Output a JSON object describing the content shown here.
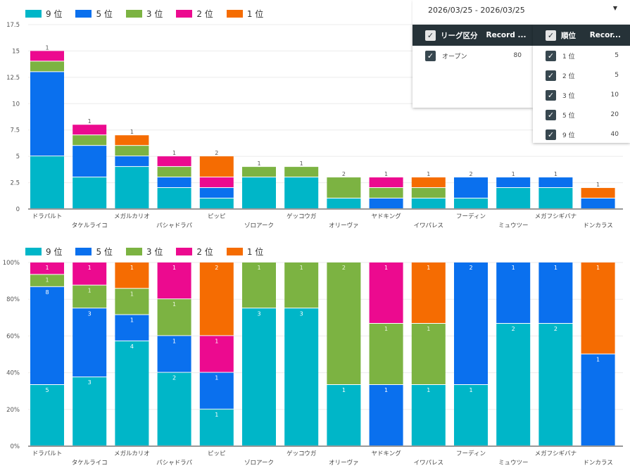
{
  "legend": [
    {
      "label": "9 位",
      "color": "#00b6c8"
    },
    {
      "label": "5 位",
      "color": "#0a70ee"
    },
    {
      "label": "3 位",
      "color": "#7cb342"
    },
    {
      "label": "2 位",
      "color": "#ec0a8f"
    },
    {
      "label": "1 位",
      "color": "#f56c02"
    }
  ],
  "filters": {
    "date_range": "2026/03/25 - 2026/03/25",
    "league": {
      "header_label": "リーグ区分",
      "header_metric": "Record ...",
      "rows": [
        {
          "label": "オープン",
          "value": "80"
        }
      ]
    },
    "rank": {
      "header_label": "順位",
      "header_metric": "Recor...",
      "rows": [
        {
          "label": "1 位",
          "value": "5"
        },
        {
          "label": "2 位",
          "value": "5"
        },
        {
          "label": "3 位",
          "value": "10"
        },
        {
          "label": "5 位",
          "value": "20"
        },
        {
          "label": "9 位",
          "value": "40"
        }
      ]
    }
  },
  "chart_data": [
    {
      "type": "bar",
      "stacked": true,
      "title": "",
      "categories": [
        "ドラパルト",
        "タケルライコ",
        "メガルカリオ",
        "パシャドラパ",
        "ピッピ",
        "ゾロアーク",
        "ゲッコウガ",
        "オリーヴァ",
        "ヤドキング",
        "イワパレス",
        "フーディン",
        "ミュウツー",
        "メガフシギバナ",
        "ドンカラス"
      ],
      "series": [
        {
          "name": "9 位",
          "values": [
            5,
            3,
            4,
            2,
            1,
            3,
            3,
            1,
            0,
            1,
            1,
            2,
            2,
            0
          ]
        },
        {
          "name": "5 位",
          "values": [
            8,
            3,
            1,
            1,
            1,
            0,
            0,
            0,
            1,
            0,
            2,
            1,
            1,
            1
          ]
        },
        {
          "name": "3 位",
          "values": [
            1,
            1,
            1,
            1,
            0,
            1,
            1,
            2,
            1,
            1,
            0,
            0,
            0,
            0
          ]
        },
        {
          "name": "2 位",
          "values": [
            1,
            1,
            0,
            1,
            1,
            0,
            0,
            0,
            1,
            0,
            0,
            0,
            0,
            0
          ]
        },
        {
          "name": "1 位",
          "values": [
            0,
            0,
            1,
            0,
            2,
            0,
            0,
            0,
            0,
            1,
            0,
            0,
            0,
            1
          ]
        }
      ],
      "yticks": [
        "0",
        "2.5",
        "5",
        "7.5",
        "10",
        "12.5",
        "15",
        "17.5"
      ],
      "ylim": [
        0,
        17.5
      ],
      "grid": true,
      "legend": "top-left"
    },
    {
      "type": "bar",
      "stacked": true,
      "normalized": true,
      "title": "",
      "categories": [
        "ドラパルト",
        "タケルライコ",
        "メガルカリオ",
        "パシャドラパ",
        "ピッピ",
        "ゾロアーク",
        "ゲッコウガ",
        "オリーヴァ",
        "ヤドキング",
        "イワパレス",
        "フーディン",
        "ミュウツー",
        "メガフシギバナ",
        "ドンカラス"
      ],
      "series": [
        {
          "name": "9 位",
          "values": [
            5,
            3,
            4,
            2,
            1,
            3,
            3,
            1,
            0,
            1,
            1,
            2,
            2,
            0
          ]
        },
        {
          "name": "5 位",
          "values": [
            8,
            3,
            1,
            1,
            1,
            0,
            0,
            0,
            1,
            0,
            2,
            1,
            1,
            1
          ]
        },
        {
          "name": "3 位",
          "values": [
            1,
            1,
            1,
            1,
            0,
            1,
            1,
            2,
            1,
            1,
            0,
            0,
            0,
            0
          ]
        },
        {
          "name": "2 位",
          "values": [
            1,
            1,
            0,
            1,
            1,
            0,
            0,
            0,
            1,
            0,
            0,
            0,
            0,
            0
          ]
        },
        {
          "name": "1 位",
          "values": [
            0,
            0,
            1,
            0,
            2,
            0,
            0,
            0,
            0,
            1,
            0,
            0,
            0,
            1
          ]
        }
      ],
      "yticks": [
        "0%",
        "20%",
        "40%",
        "60%",
        "80%",
        "100%"
      ],
      "ylim": [
        0,
        100
      ],
      "grid": true,
      "legend": "top-left"
    }
  ]
}
